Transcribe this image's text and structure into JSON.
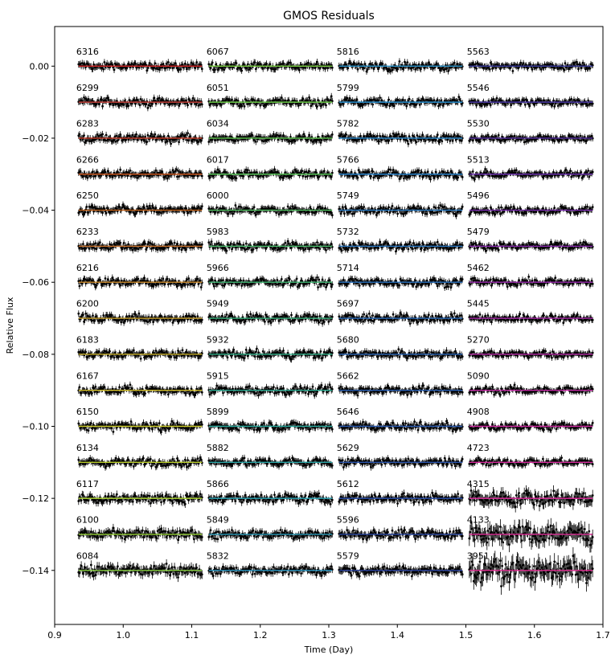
{
  "chart_data": {
    "type": "scatter",
    "title": "GMOS Residuals",
    "xlabel": "Time (Day)",
    "ylabel": "Relative Flux",
    "xlim": [
      0.9,
      1.7
    ],
    "ylim": [
      -0.155,
      0.011
    ],
    "xticks": [
      0.9,
      1.0,
      1.1,
      1.2,
      1.3,
      1.4,
      1.5,
      1.6,
      1.7
    ],
    "xtick_labels": [
      "0.9",
      "1.0",
      "1.1",
      "1.2",
      "1.3",
      "1.4",
      "1.5",
      "1.6",
      "1.7"
    ],
    "yticks": [
      0.0,
      -0.02,
      -0.04,
      -0.06,
      -0.08,
      -0.1,
      -0.12,
      -0.14
    ],
    "ytick_labels": [
      "0.00",
      "−0.02",
      "−0.04",
      "−0.06",
      "−0.08",
      "−0.10",
      "−0.12",
      "−0.14"
    ],
    "grid": false,
    "offset_step": -0.01,
    "time_window": [
      0.0,
      0.18
    ],
    "columns": [
      {
        "x_start": 0.935,
        "labels": [
          "6316",
          "6299",
          "6283",
          "6266",
          "6250",
          "6233",
          "6216",
          "6200",
          "6183",
          "6167",
          "6150",
          "6134",
          "6117",
          "6100",
          "6084"
        ]
      },
      {
        "x_start": 1.125,
        "labels": [
          "6067",
          "6051",
          "6034",
          "6017",
          "6000",
          "5983",
          "5966",
          "5949",
          "5932",
          "5915",
          "5899",
          "5882",
          "5866",
          "5849",
          "5832"
        ]
      },
      {
        "x_start": 1.315,
        "labels": [
          "5816",
          "5799",
          "5782",
          "5766",
          "5749",
          "5732",
          "5714",
          "5697",
          "5680",
          "5662",
          "5646",
          "5629",
          "5612",
          "5596",
          "5579"
        ]
      },
      {
        "x_start": 1.505,
        "labels": [
          "5563",
          "5546",
          "5530",
          "5513",
          "5496",
          "5479",
          "5462",
          "5445",
          "5270",
          "5090",
          "4908",
          "4723",
          "4315",
          "4133",
          "3951"
        ]
      }
    ],
    "noise_amplitude": [
      0.0013,
      0.0013,
      0.0013,
      0.0013,
      0.0013,
      0.0013,
      0.0013,
      0.0013,
      0.0013,
      0.0013,
      0.0013,
      0.0013,
      0.0015,
      0.0016,
      0.0018,
      0.0013,
      0.0013,
      0.0013,
      0.0013,
      0.0013,
      0.0013,
      0.0013,
      0.0013,
      0.0013,
      0.0013,
      0.0013,
      0.0013,
      0.0014,
      0.0014,
      0.0014,
      0.0013,
      0.0013,
      0.0013,
      0.0013,
      0.0013,
      0.0013,
      0.0013,
      0.0013,
      0.0013,
      0.0013,
      0.0013,
      0.0013,
      0.0014,
      0.0015,
      0.0015,
      0.0012,
      0.0012,
      0.0012,
      0.0012,
      0.0012,
      0.0012,
      0.0012,
      0.0012,
      0.0012,
      0.0012,
      0.0012,
      0.0012,
      0.0022,
      0.003,
      0.0034
    ],
    "model_colors": [
      "#d62728",
      "#c2413a",
      "#cc3f2a",
      "#c8561f",
      "#c06018",
      "#c8702a",
      "#cc8a2a",
      "#c8a02a",
      "#c8b02a",
      "#d4c02a",
      "#c8c82a",
      "#b8cc2a",
      "#a8d030",
      "#98d438",
      "#88d040",
      "#7ad040",
      "#6ccc48",
      "#60c850",
      "#58c458",
      "#50c060",
      "#48bc6a",
      "#40b874",
      "#38b47e",
      "#30b088",
      "#2aac92",
      "#2aa89c",
      "#2aa4a6",
      "#2aa0b0",
      "#2a9cba",
      "#2a98c4",
      "#2a94cc",
      "#2a90d0",
      "#2a8ad0",
      "#2a84cc",
      "#2a7ec8",
      "#2a78c4",
      "#2a72c0",
      "#2a6cbc",
      "#2a66b8",
      "#2a60b4",
      "#2a5ab0",
      "#2a54ac",
      "#2a4ea8",
      "#2a48a4",
      "#2a42a0",
      "#3a3ca0",
      "#4a38a4",
      "#5a34a8",
      "#6a30ac",
      "#7a2cb0",
      "#8a2ab0",
      "#9a2aae",
      "#aa2aac",
      "#b82aa8",
      "#c42aa4",
      "#cc2aa0",
      "#d42a9c",
      "#d82a98",
      "#dc2a94",
      "#e02a90"
    ]
  }
}
